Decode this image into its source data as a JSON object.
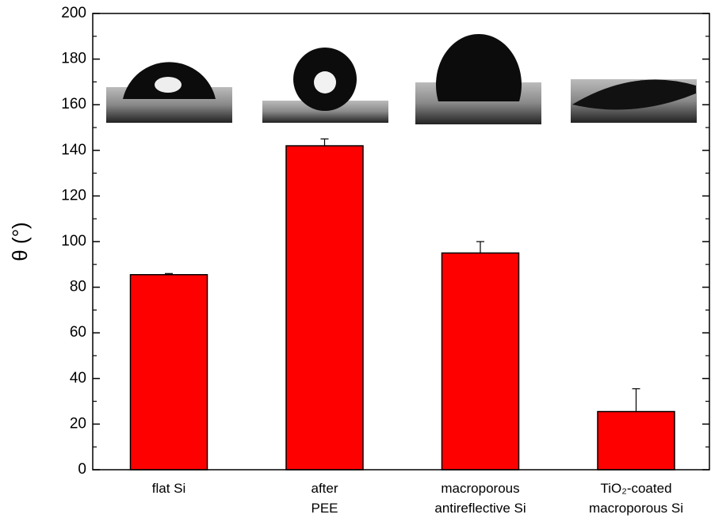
{
  "chart_data": {
    "type": "bar",
    "y_label": "θ (°)",
    "categories": [
      "flat Si",
      "after\nPEE",
      "macroporous\nantireflective Si",
      "TiO₂-coated\nmacroporous Si"
    ],
    "series": [
      {
        "color": "#ff0000",
        "values": [
          85.5,
          142,
          95,
          25.5
        ],
        "errors": [
          0.5,
          3,
          5,
          10
        ]
      }
    ],
    "ylim": [
      0,
      200
    ],
    "yticks": [
      0,
      20,
      40,
      60,
      80,
      100,
      120,
      140,
      160,
      180,
      200
    ],
    "grid": false
  }
}
